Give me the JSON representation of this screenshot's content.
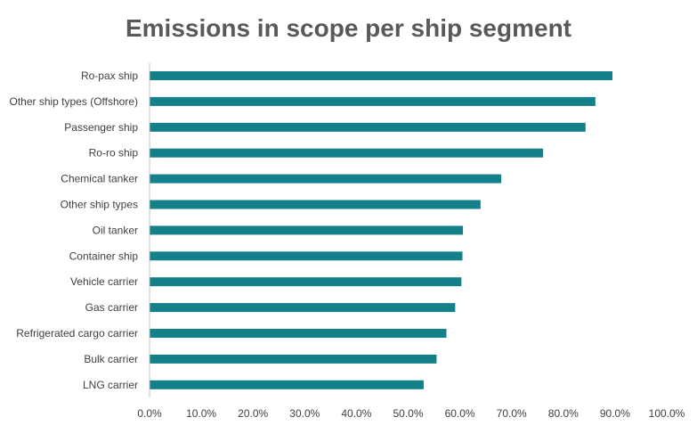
{
  "chart_data": {
    "type": "bar",
    "orientation": "horizontal",
    "title": "Emissions in scope per ship segment",
    "categories": [
      "Ro-pax ship",
      "Other ship types (Offshore)",
      "Passenger ship",
      "Ro-ro ship",
      "Chemical tanker",
      "Other ship types",
      "Oil tanker",
      "Container ship",
      "Vehicle carrier",
      "Gas carrier",
      "Refrigerated cargo carrier",
      "Bulk carrier",
      "LNG carrier"
    ],
    "values": [
      89.5,
      86.2,
      84.3,
      76.1,
      68.0,
      64.0,
      60.6,
      60.5,
      60.3,
      59.1,
      57.4,
      55.5,
      53.0
    ],
    "xlim": [
      0,
      100
    ],
    "xticks": [
      "0.0%",
      "10.0%",
      "20.0%",
      "30.0%",
      "40.0%",
      "50.0%",
      "60.0%",
      "70.0%",
      "80.0%",
      "90.0%",
      "100.0%"
    ],
    "bar_color": "#13808a",
    "grid": false
  }
}
